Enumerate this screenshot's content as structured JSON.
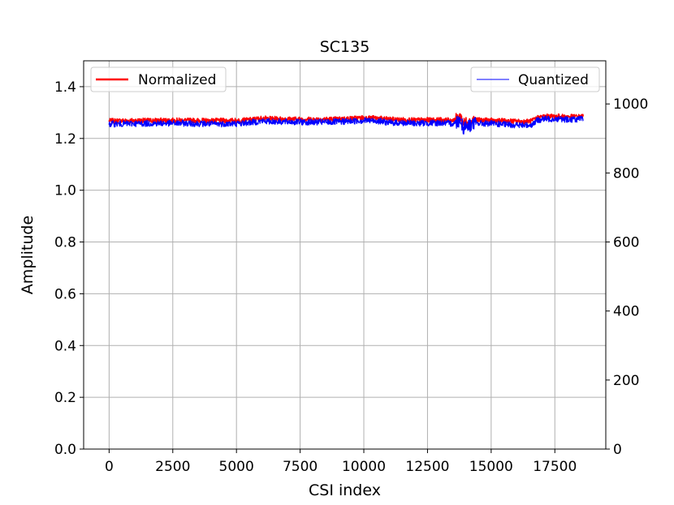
{
  "chart_data": {
    "type": "line",
    "title": "SC135",
    "xlabel": "CSI index",
    "ylabel": "Amplitude",
    "y2label": "",
    "xlim": [
      -1000,
      19500
    ],
    "ylim": [
      0,
      1.5
    ],
    "y2lim": [
      0,
      1125
    ],
    "xticks": [
      0,
      2500,
      5000,
      7500,
      10000,
      12500,
      15000,
      17500
    ],
    "yticks": [
      "0.0",
      "0.2",
      "0.4",
      "0.6",
      "0.8",
      "1.0",
      "1.2",
      "1.4"
    ],
    "y2ticks": [
      0,
      200,
      400,
      600,
      800,
      1000
    ],
    "grid": true,
    "series": [
      {
        "name": "Normalized",
        "axis": "left",
        "color": "#ff0000",
        "x": [
          0,
          1000,
          2000,
          3000,
          4000,
          5000,
          5500,
          6000,
          7000,
          8000,
          9000,
          10000,
          10500,
          11000,
          12000,
          13000,
          13500,
          13800,
          13900,
          14000,
          14100,
          14300,
          15000,
          16000,
          16300,
          16600,
          16800,
          17000,
          17500,
          18000,
          18600
        ],
        "y": [
          1.268,
          1.269,
          1.27,
          1.27,
          1.269,
          1.269,
          1.272,
          1.278,
          1.275,
          1.274,
          1.275,
          1.28,
          1.279,
          1.274,
          1.271,
          1.272,
          1.27,
          1.285,
          1.258,
          1.265,
          1.262,
          1.272,
          1.27,
          1.266,
          1.265,
          1.268,
          1.28,
          1.285,
          1.286,
          1.284,
          1.285
        ]
      },
      {
        "name": "Quantized",
        "axis": "right",
        "color": "#0000ff",
        "x": [
          0,
          1000,
          2000,
          3000,
          4000,
          5000,
          5500,
          6000,
          7000,
          8000,
          9000,
          10000,
          10500,
          11000,
          12000,
          13000,
          13500,
          13800,
          13900,
          14000,
          14100,
          14300,
          15000,
          16000,
          16300,
          16600,
          16800,
          17000,
          17500,
          18000,
          18600
        ],
        "y": [
          942,
          943,
          944,
          944,
          942,
          943,
          946,
          950,
          948,
          947,
          948,
          952,
          951,
          946,
          944,
          945,
          943,
          955,
          930,
          938,
          935,
          944,
          943,
          939,
          938,
          940,
          952,
          956,
          957,
          955,
          956
        ]
      }
    ],
    "legends": [
      {
        "placement": "upper-left",
        "entries": [
          "Normalized"
        ]
      },
      {
        "placement": "upper-right",
        "entries": [
          "Quantized"
        ]
      }
    ]
  }
}
